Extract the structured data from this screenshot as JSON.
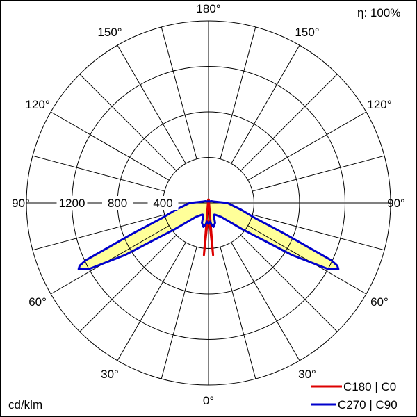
{
  "chart_data": {
    "type": "polar",
    "efficiency_label": "η: 100%",
    "unit_label": "cd/klm",
    "radial_ticks": [
      400,
      800,
      1200
    ],
    "radial_max": 1600,
    "angle_labels": [
      {
        "deg": 0,
        "text": "0°"
      },
      {
        "deg": 30,
        "text": "30°"
      },
      {
        "deg": 60,
        "text": "60°"
      },
      {
        "deg": 90,
        "text": "90°"
      },
      {
        "deg": 120,
        "text": "120°"
      },
      {
        "deg": 150,
        "text": "150°"
      },
      {
        "deg": 180,
        "text": "180°"
      }
    ],
    "series": [
      {
        "name": "C180 | C0",
        "color": "#dd0000",
        "points": [
          [
            0,
            160
          ],
          [
            2,
            170
          ],
          [
            4,
            240
          ],
          [
            5,
            460
          ],
          [
            175,
            30
          ],
          [
            180,
            30
          ]
        ]
      },
      {
        "name": "C270 | C90",
        "color": "#0000cc",
        "points": [
          [
            0,
            185
          ],
          [
            5,
            165
          ],
          [
            8,
            195
          ],
          [
            12,
            215
          ],
          [
            18,
            185
          ],
          [
            22,
            125
          ],
          [
            26,
            115
          ],
          [
            32,
            125
          ],
          [
            42,
            165
          ],
          [
            52,
            370
          ],
          [
            58,
            860
          ],
          [
            61,
            1190
          ],
          [
            63,
            1280
          ],
          [
            64,
            1260
          ],
          [
            65,
            1190
          ],
          [
            68,
            720
          ],
          [
            72,
            430
          ],
          [
            78,
            295
          ],
          [
            84,
            210
          ],
          [
            90,
            165
          ],
          [
            100,
            60
          ],
          [
            120,
            30
          ],
          [
            150,
            15
          ],
          [
            180,
            15
          ]
        ]
      }
    ]
  }
}
